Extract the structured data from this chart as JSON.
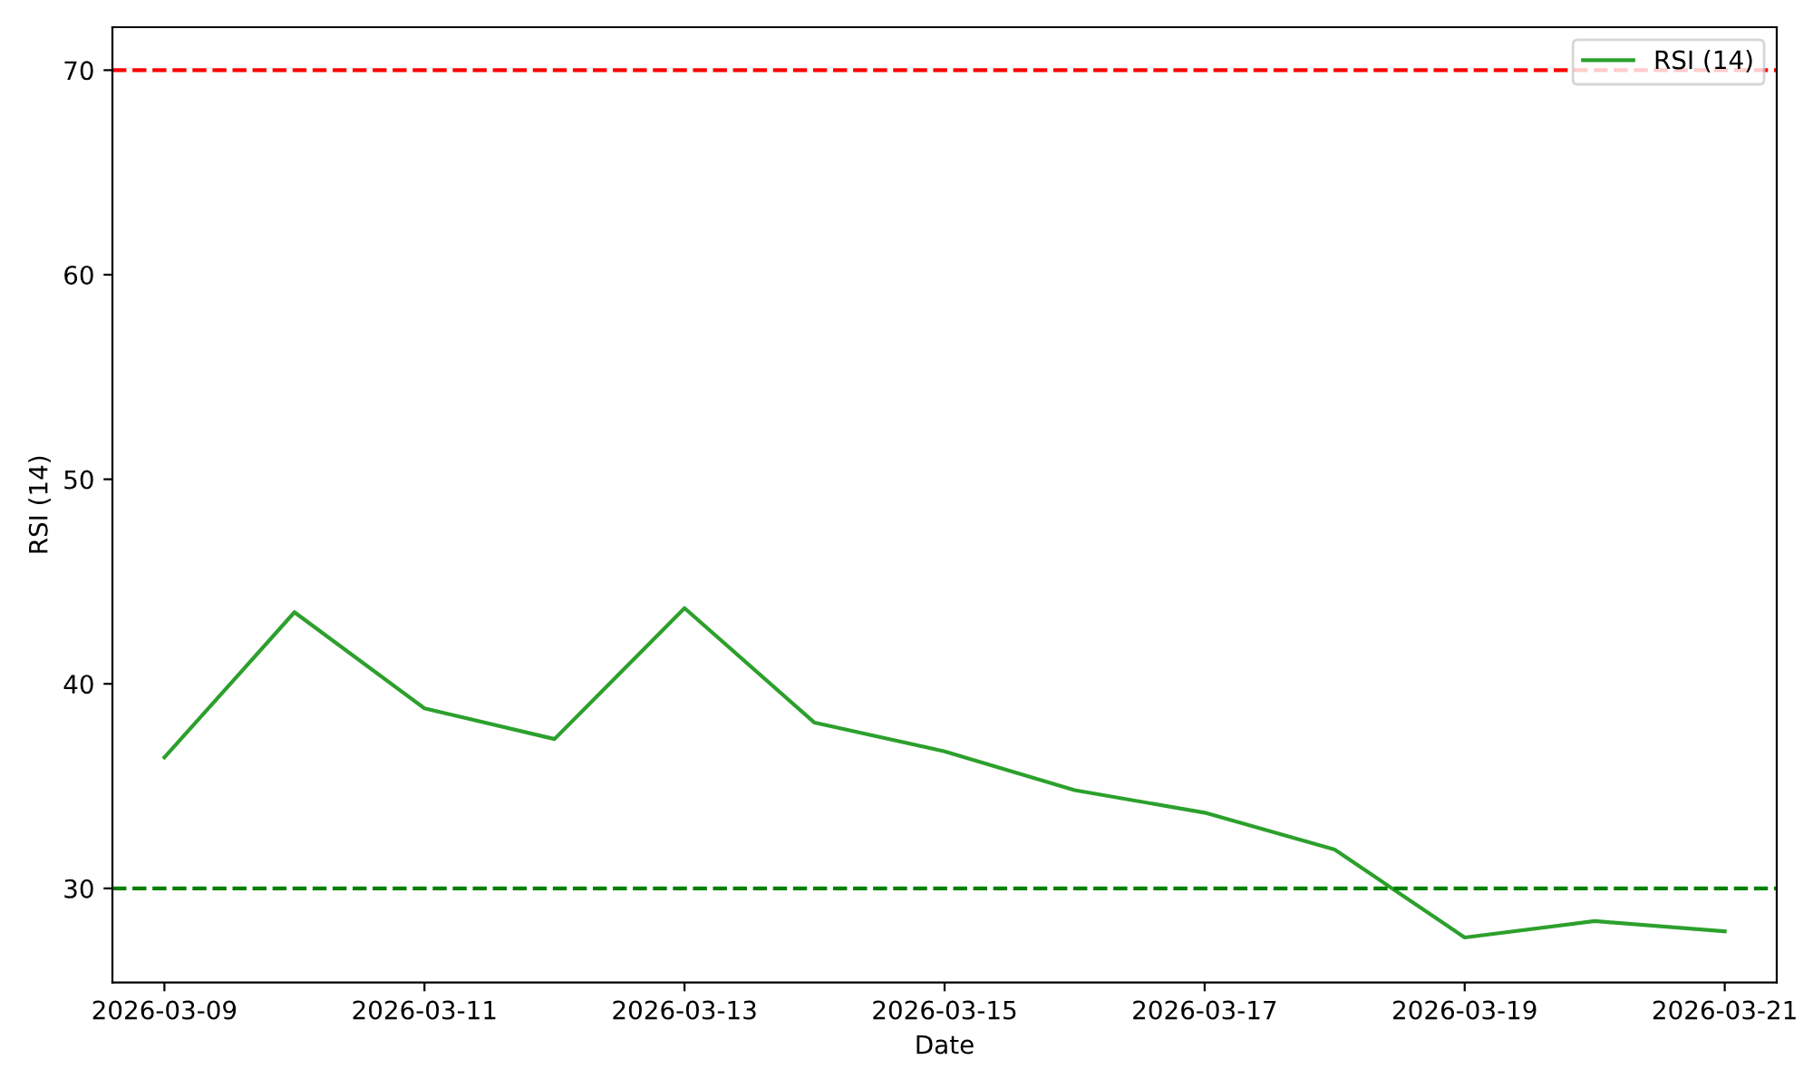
{
  "chart_data": {
    "type": "line",
    "xlabel": "Date",
    "ylabel": "RSI (14)",
    "x": [
      "2026-03-09",
      "2026-03-10",
      "2026-03-11",
      "2026-03-12",
      "2026-03-13",
      "2026-03-14",
      "2026-03-15",
      "2026-03-16",
      "2026-03-17",
      "2026-03-18",
      "2026-03-19",
      "2026-03-20",
      "2026-03-21"
    ],
    "series": [
      {
        "name": "RSI (14)",
        "color": "#2ca02c",
        "values": [
          36.4,
          43.5,
          38.8,
          37.3,
          43.7,
          38.1,
          36.7,
          34.8,
          33.7,
          31.9,
          27.6,
          28.4,
          27.9
        ]
      }
    ],
    "xlim": [
      "2026-03-08T14:24",
      "2026-03-21T09:36"
    ],
    "xticks": [
      "2026-03-09",
      "2026-03-11",
      "2026-03-13",
      "2026-03-15",
      "2026-03-17",
      "2026-03-19",
      "2026-03-21"
    ],
    "ylim": [
      25.4,
      72.1
    ],
    "yticks": [
      30,
      40,
      50,
      60,
      70
    ],
    "ref_lines": [
      {
        "axis": "y",
        "value": 70,
        "color": "#ff0000",
        "line_style": "dashed"
      },
      {
        "axis": "y",
        "value": 30,
        "color": "#008000",
        "line_style": "dashed"
      }
    ],
    "legend": "top right",
    "grid": false,
    "marker": "none",
    "line_style": "solid"
  }
}
